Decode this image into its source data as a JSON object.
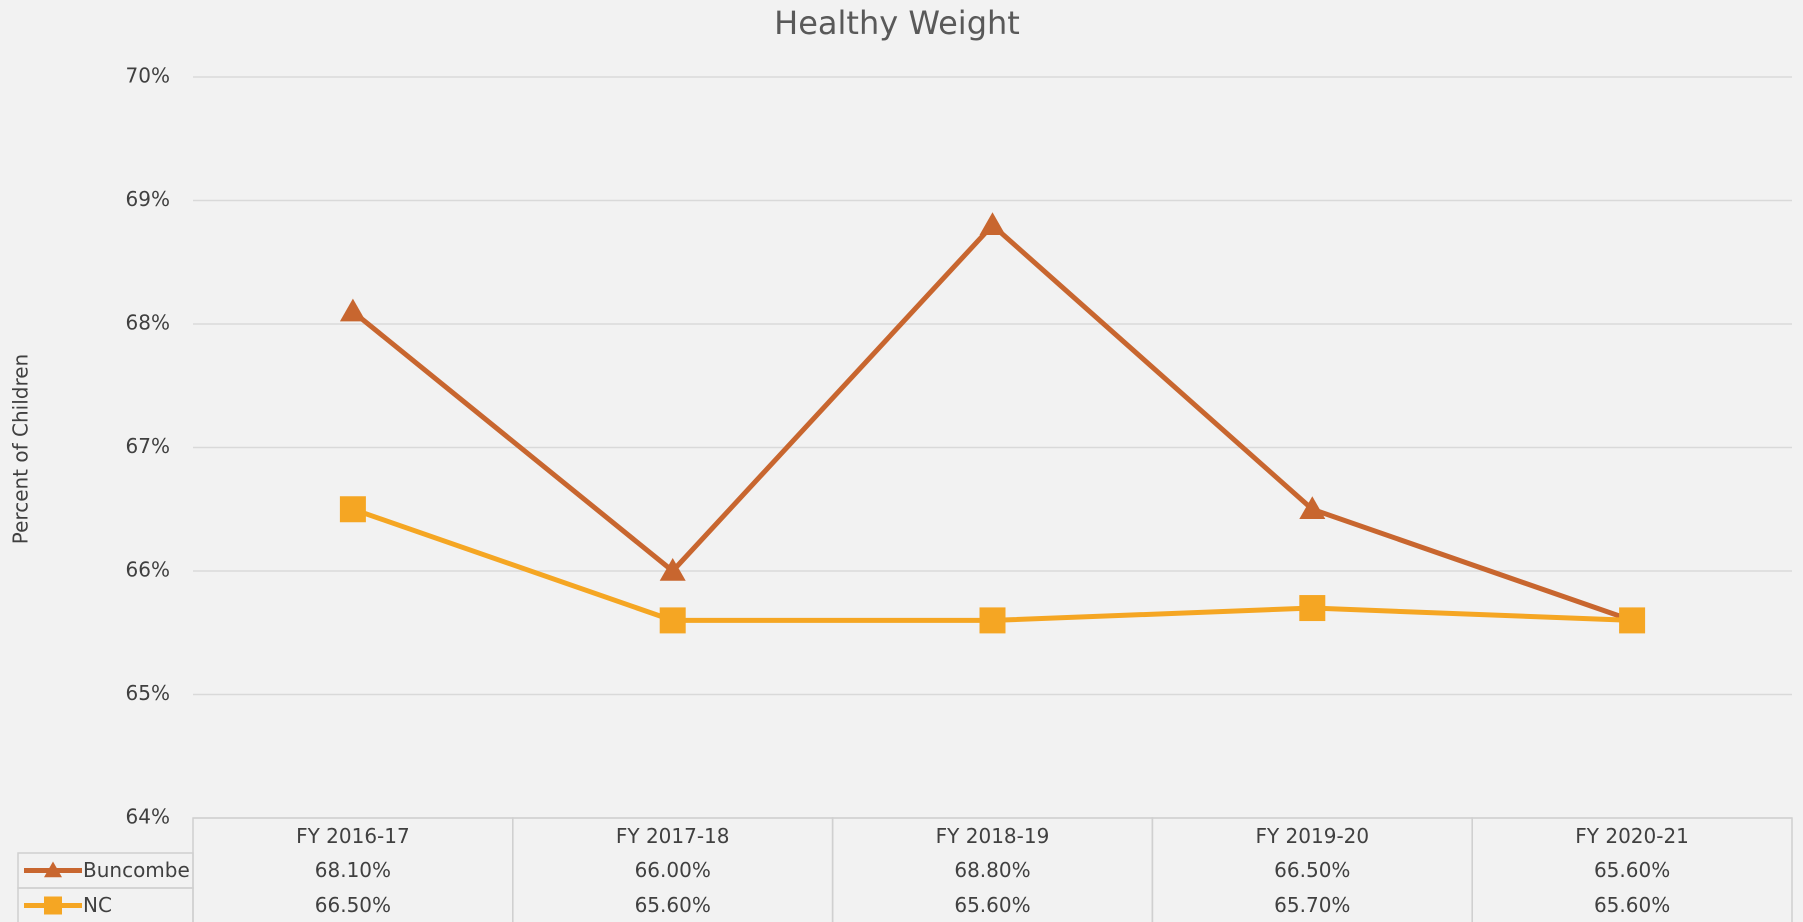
{
  "chart_data": {
    "type": "line",
    "title": "Healthy Weight",
    "y_label": "Percent of Children",
    "categories": [
      "FY 2016-17",
      "FY 2017-18",
      "FY 2018-19",
      "FY 2019-20",
      "FY 2020-21"
    ],
    "series": [
      {
        "name": "Buncombe",
        "color": "#c8662f",
        "marker": "triangle",
        "values": [
          68.1,
          66.0,
          68.8,
          66.5,
          65.6
        ],
        "value_labels": [
          "68.10%",
          "66.00%",
          "68.80%",
          "66.50%",
          "65.60%"
        ]
      },
      {
        "name": "NC",
        "color": "#f5a623",
        "marker": "square",
        "values": [
          66.5,
          65.6,
          65.6,
          65.7,
          65.6
        ],
        "value_labels": [
          "66.50%",
          "65.60%",
          "65.60%",
          "65.70%",
          "65.60%"
        ]
      }
    ],
    "ylim": [
      64,
      70
    ],
    "yticks": [
      {
        "value": 64,
        "label": "64%"
      },
      {
        "value": 65,
        "label": "65%"
      },
      {
        "value": 66,
        "label": "66%"
      },
      {
        "value": 67,
        "label": "67%"
      },
      {
        "value": 68,
        "label": "68%"
      },
      {
        "value": 69,
        "label": "69%"
      },
      {
        "value": 70,
        "label": "70%"
      }
    ],
    "grid": true
  }
}
